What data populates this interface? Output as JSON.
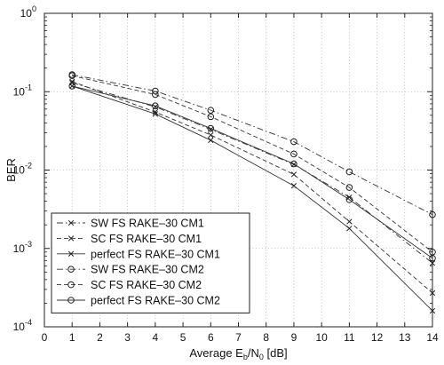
{
  "chart_data": {
    "type": "line",
    "title": "",
    "xlabel": {
      "base": "Average E",
      "sub1": "b",
      "mid": "/N",
      "sub2": "0",
      "tail": " [dB]"
    },
    "ylabel": "BER",
    "x_scale": "linear",
    "y_scale": "log",
    "xlim": [
      0,
      14
    ],
    "ylim": [
      0.0001,
      1
    ],
    "grid": true,
    "legend_position": "bottom-left",
    "x_ticks": [
      "0",
      "1",
      "2",
      "3",
      "4",
      "5",
      "6",
      "7",
      "8",
      "9",
      "10",
      "11",
      "12",
      "13",
      "14"
    ],
    "y_ticks": [
      {
        "value": 0.0001,
        "exp": "-4"
      },
      {
        "value": 0.001,
        "exp": "-3"
      },
      {
        "value": 0.01,
        "exp": "-2"
      },
      {
        "value": 0.1,
        "exp": "-1"
      },
      {
        "value": 1,
        "exp": "0"
      }
    ],
    "series": [
      {
        "name": "SW FS RAKE–30 CM1",
        "line": "dashdot",
        "marker": "x",
        "x": [
          1,
          4,
          6,
          9,
          11,
          14
        ],
        "y": [
          0.13,
          0.064,
          0.033,
          0.0118,
          0.0045,
          0.00065
        ]
      },
      {
        "name": "SC FS RAKE–30 CM1",
        "line": "dashed",
        "marker": "x",
        "x": [
          1,
          4,
          6,
          9,
          11,
          14
        ],
        "y": [
          0.135,
          0.055,
          0.028,
          0.0088,
          0.0022,
          0.00027
        ]
      },
      {
        "name": "perfect FS RAKE–30 CM1",
        "line": "solid",
        "marker": "x",
        "x": [
          1,
          4,
          6,
          9,
          11,
          14
        ],
        "y": [
          0.118,
          0.052,
          0.024,
          0.0063,
          0.0018,
          0.00016
        ]
      },
      {
        "name": "SW FS RAKE–30 CM2",
        "line": "dashdot",
        "marker": "o",
        "x": [
          1,
          4,
          6,
          9,
          11,
          14
        ],
        "y": [
          0.165,
          0.102,
          0.058,
          0.023,
          0.0095,
          0.0027
        ]
      },
      {
        "name": "SC FS RAKE–30  CM2",
        "line": "dashed",
        "marker": "o",
        "x": [
          1,
          4,
          6,
          9,
          11,
          14
        ],
        "y": [
          0.16,
          0.092,
          0.048,
          0.016,
          0.006,
          0.0009
        ]
      },
      {
        "name": "perfect FS RAKE–30 CM2",
        "line": "solid",
        "marker": "o",
        "x": [
          1,
          4,
          6,
          9,
          11,
          14
        ],
        "y": [
          0.118,
          0.066,
          0.034,
          0.012,
          0.0042,
          0.00075
        ]
      }
    ]
  }
}
